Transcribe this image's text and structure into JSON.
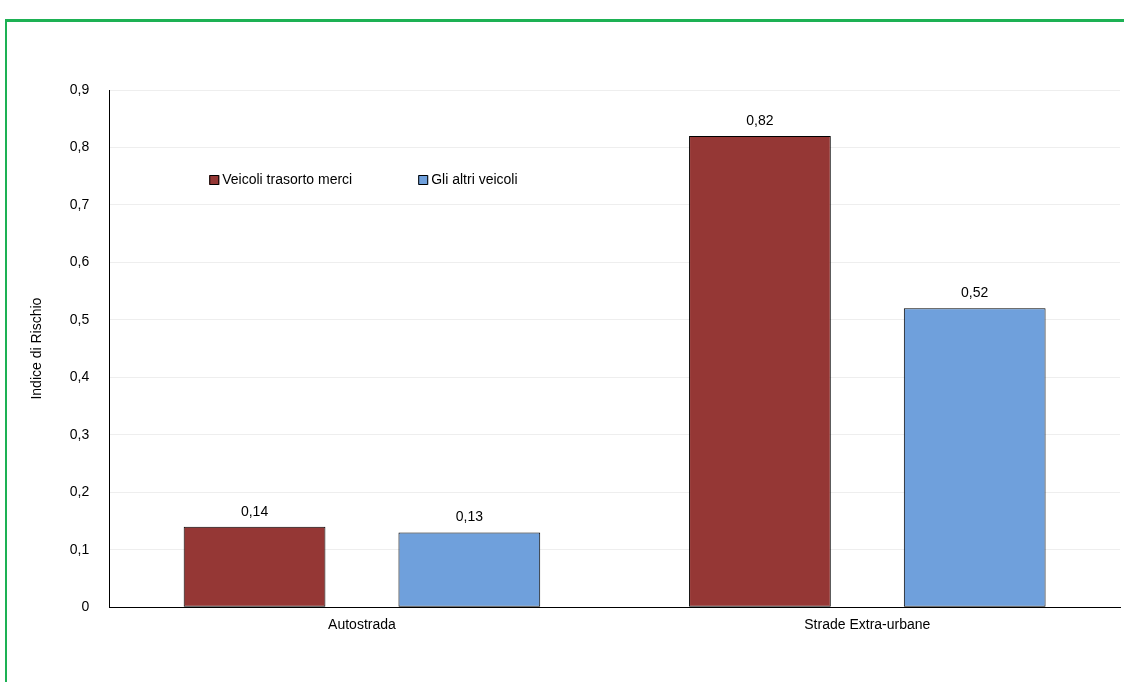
{
  "chart_data": {
    "type": "bar",
    "ylabel": "Indice di Rischio",
    "categories": [
      "Autostrada",
      "Strade Extra-urbane"
    ],
    "series": [
      {
        "name": "Veicoli trasorto merci",
        "color": "#953735",
        "values": [
          0.14,
          0.82
        ],
        "value_labels": [
          "0,14",
          "0,82"
        ]
      },
      {
        "name": "Gli altri veicoli",
        "color": "#6fa0dc",
        "values": [
          0.13,
          0.52
        ],
        "value_labels": [
          "0,13",
          "0,52"
        ]
      }
    ],
    "ylim": [
      0,
      0.9
    ],
    "yticks": [
      0,
      {
        "value": 0.1,
        "label": "0,1"
      },
      {
        "value": 0.2,
        "label": "0,2"
      },
      {
        "value": 0.3,
        "label": "0,3"
      },
      {
        "value": 0.4,
        "label": "0,4"
      },
      {
        "value": 0.5,
        "label": "0,5"
      },
      {
        "value": 0.6,
        "label": "0,6"
      },
      {
        "value": 0.7,
        "label": "0,7"
      },
      {
        "value": 0.8,
        "label": "0,8"
      },
      {
        "value": 0.9,
        "label": "0,9"
      }
    ],
    "grid": "y",
    "legend": "top left"
  }
}
